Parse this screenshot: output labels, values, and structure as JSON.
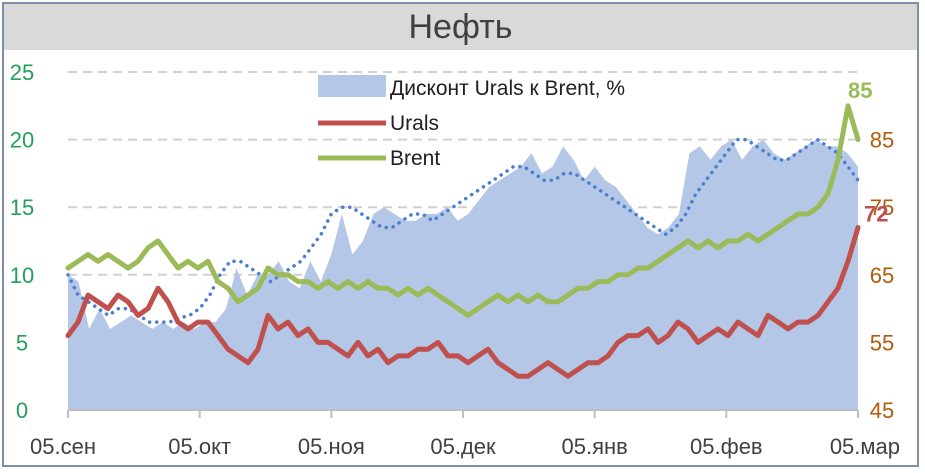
{
  "chart_data": {
    "type": "line",
    "title": "Нефть",
    "x_ticks": [
      "05.сен",
      "05.окт",
      "05.ноя",
      "05.дек",
      "05.янв",
      "05.фев",
      "05.мар"
    ],
    "y_left": {
      "ticks": [
        "0",
        "5",
        "10",
        "15",
        "20",
        "25"
      ],
      "range": [
        0,
        25
      ],
      "color": "#22a05a"
    },
    "y_right": {
      "ticks": [
        "45",
        "55",
        "65",
        "75",
        "85"
      ],
      "range": [
        45,
        95
      ],
      "color": "#b25c0b"
    },
    "grid": "horizontal dashed",
    "legend_position": "top-center",
    "series": [
      {
        "name": "Дисконт Urals к Brent, %",
        "kind": "area",
        "axis": "left",
        "color": "#b4c7e7",
        "values": [
          10.0,
          9.5,
          6.0,
          7.5,
          6.0,
          6.5,
          7.0,
          6.5,
          6.0,
          6.5,
          6.0,
          6.5,
          6.0,
          6.5,
          6.5,
          7.5,
          10.5,
          8.5,
          10.0,
          10.0,
          11.0,
          9.5,
          9.0,
          11.0,
          9.5,
          11.5,
          14.5,
          11.5,
          12.5,
          14.5,
          15.0,
          14.5,
          14.0,
          14.0,
          14.5,
          14.5,
          15.0,
          14.0,
          14.5,
          15.5,
          16.5,
          17.0,
          17.5,
          18.0,
          19.0,
          17.5,
          18.0,
          19.5,
          18.5,
          17.0,
          18.0,
          17.0,
          16.5,
          15.5,
          14.5,
          13.5,
          13.0,
          13.5,
          14.5,
          19.0,
          19.5,
          18.5,
          19.5,
          20.0,
          18.5,
          19.5,
          20.0,
          19.0,
          18.5,
          19.0,
          19.5,
          20.0,
          19.5,
          19.5,
          19.0,
          18.0
        ]
      },
      {
        "name": "",
        "kind": "dotted",
        "axis": "left",
        "color": "#4a7fcf",
        "values": [
          10.0,
          8.5,
          8.0,
          7.5,
          7.0,
          7.5,
          7.5,
          7.0,
          6.5,
          6.5,
          6.5,
          6.8,
          7.0,
          7.5,
          8.5,
          10.0,
          11.0,
          11.0,
          10.5,
          10.0,
          9.5,
          10.0,
          10.5,
          11.0,
          12.0,
          13.0,
          14.5,
          15.0,
          15.0,
          14.5,
          14.0,
          13.5,
          13.5,
          14.0,
          14.5,
          14.5,
          14.0,
          14.5,
          15.0,
          15.5,
          16.0,
          16.5,
          17.0,
          17.5,
          18.0,
          18.0,
          17.5,
          17.0,
          17.0,
          17.5,
          17.5,
          17.0,
          16.5,
          16.0,
          15.5,
          15.0,
          14.5,
          14.0,
          13.5,
          13.0,
          13.5,
          14.5,
          16.0,
          17.0,
          18.0,
          19.0,
          20.0,
          20.0,
          19.5,
          19.0,
          18.5,
          18.5,
          19.0,
          19.5,
          20.0,
          19.5,
          19.0,
          18.0,
          17.0
        ]
      },
      {
        "name": "Urals",
        "kind": "line",
        "axis": "right",
        "color": "#c0504d",
        "values": [
          56,
          58,
          62,
          61,
          60,
          62,
          61,
          59,
          60,
          63,
          61,
          58,
          57,
          58,
          58,
          56,
          54,
          53,
          52,
          54,
          59,
          57,
          58,
          56,
          57,
          55,
          55,
          54,
          53,
          55,
          53,
          54,
          52,
          53,
          53,
          54,
          54,
          55,
          53,
          53,
          52,
          53,
          54,
          52,
          51,
          50,
          50,
          51,
          52,
          51,
          50,
          51,
          52,
          52,
          53,
          55,
          56,
          56,
          57,
          55,
          56,
          58,
          57,
          55,
          56,
          57,
          56,
          58,
          57,
          56,
          59,
          58,
          57,
          58,
          58,
          59,
          61,
          63,
          67,
          72
        ]
      },
      {
        "name": "Brent",
        "kind": "line",
        "axis": "right",
        "color": "#9bbb59",
        "values": [
          66,
          67,
          68,
          67,
          68,
          67,
          66,
          67,
          69,
          70,
          68,
          66,
          67,
          66,
          67,
          64,
          63,
          61,
          62,
          63,
          66,
          65,
          65,
          64,
          64,
          63,
          64,
          63,
          64,
          63,
          64,
          63,
          63,
          62,
          63,
          62,
          63,
          62,
          61,
          60,
          59,
          60,
          61,
          62,
          61,
          62,
          61,
          62,
          61,
          61,
          62,
          63,
          63,
          64,
          64,
          65,
          65,
          66,
          66,
          67,
          68,
          69,
          70,
          69,
          70,
          69,
          70,
          70,
          71,
          70,
          71,
          72,
          73,
          74,
          74,
          75,
          77,
          82,
          90,
          85
        ]
      }
    ],
    "end_labels": [
      {
        "text": "85",
        "series": "Brent"
      },
      {
        "text": "72",
        "series": "Urals"
      }
    ]
  },
  "legend": {
    "discount_label": "Дисконт Urals к Brent, %",
    "urals_label": "Urals",
    "brent_label": "Brent"
  }
}
